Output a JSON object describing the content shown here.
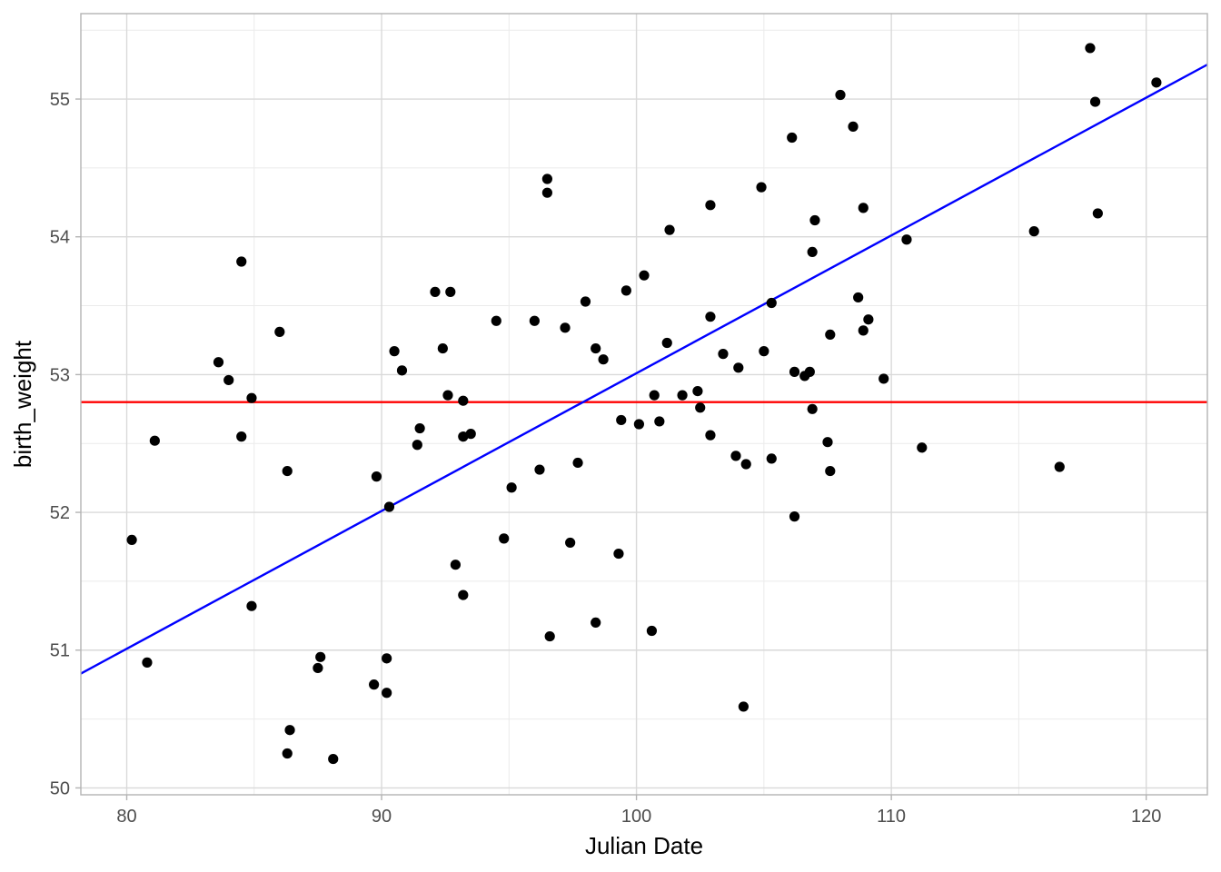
{
  "chart_data": {
    "type": "scatter",
    "title": "",
    "xlabel": "Julian Date",
    "ylabel": "birth_weight",
    "xlim": [
      78.2,
      122.4
    ],
    "ylim": [
      49.95,
      55.62
    ],
    "x_ticks": [
      80,
      90,
      100,
      110,
      120
    ],
    "y_ticks": [
      50,
      51,
      52,
      53,
      54,
      55
    ],
    "x_tick_labels": [
      "80",
      "90",
      "100",
      "110",
      "120"
    ],
    "y_tick_labels": [
      "50",
      "51",
      "52",
      "53",
      "54",
      "55"
    ],
    "grid": true,
    "legend": "none",
    "colors": {
      "points": "#000000",
      "mean_line": "#ff0000",
      "fit_line": "#0000ff",
      "grid_major": "#d9d9d9",
      "grid_minor": "#ebebeb",
      "panel_border": "#b3b3b3"
    },
    "points": [
      [
        80.2,
        51.8
      ],
      [
        80.8,
        50.91
      ],
      [
        81.1,
        52.52
      ],
      [
        83.6,
        53.09
      ],
      [
        84.0,
        52.96
      ],
      [
        84.5,
        53.82
      ],
      [
        84.5,
        52.55
      ],
      [
        84.9,
        52.83
      ],
      [
        84.9,
        51.32
      ],
      [
        86.0,
        53.31
      ],
      [
        86.3,
        52.3
      ],
      [
        86.3,
        50.25
      ],
      [
        86.4,
        50.42
      ],
      [
        87.5,
        50.87
      ],
      [
        87.6,
        50.95
      ],
      [
        88.1,
        50.21
      ],
      [
        89.7,
        50.75
      ],
      [
        89.8,
        52.26
      ],
      [
        90.2,
        50.94
      ],
      [
        90.2,
        50.69
      ],
      [
        90.3,
        52.04
      ],
      [
        90.5,
        53.17
      ],
      [
        90.8,
        53.03
      ],
      [
        91.4,
        52.49
      ],
      [
        91.5,
        52.61
      ],
      [
        92.1,
        53.6
      ],
      [
        92.4,
        53.19
      ],
      [
        92.6,
        52.85
      ],
      [
        92.7,
        53.6
      ],
      [
        92.9,
        51.62
      ],
      [
        93.2,
        52.55
      ],
      [
        93.2,
        52.81
      ],
      [
        93.2,
        51.4
      ],
      [
        93.5,
        52.57
      ],
      [
        94.5,
        53.39
      ],
      [
        94.8,
        51.81
      ],
      [
        95.1,
        52.18
      ],
      [
        96.0,
        53.39
      ],
      [
        96.2,
        52.31
      ],
      [
        96.5,
        54.42
      ],
      [
        96.5,
        54.32
      ],
      [
        96.6,
        51.1
      ],
      [
        97.2,
        53.34
      ],
      [
        97.4,
        51.78
      ],
      [
        97.7,
        52.36
      ],
      [
        98.0,
        53.53
      ],
      [
        98.4,
        53.19
      ],
      [
        98.4,
        51.2
      ],
      [
        98.7,
        53.11
      ],
      [
        99.3,
        51.7
      ],
      [
        99.4,
        52.67
      ],
      [
        99.6,
        53.61
      ],
      [
        100.1,
        52.64
      ],
      [
        100.3,
        53.72
      ],
      [
        100.6,
        51.14
      ],
      [
        100.7,
        52.85
      ],
      [
        100.9,
        52.66
      ],
      [
        101.2,
        53.23
      ],
      [
        101.3,
        54.05
      ],
      [
        101.8,
        52.85
      ],
      [
        102.4,
        52.88
      ],
      [
        102.5,
        52.76
      ],
      [
        102.9,
        54.23
      ],
      [
        102.9,
        53.42
      ],
      [
        102.9,
        52.56
      ],
      [
        103.4,
        53.15
      ],
      [
        103.9,
        52.41
      ],
      [
        104.0,
        53.05
      ],
      [
        104.2,
        50.59
      ],
      [
        104.3,
        52.35
      ],
      [
        104.9,
        54.36
      ],
      [
        105.0,
        53.17
      ],
      [
        105.3,
        53.52
      ],
      [
        105.3,
        52.39
      ],
      [
        106.1,
        54.72
      ],
      [
        106.2,
        53.02
      ],
      [
        106.2,
        51.97
      ],
      [
        106.6,
        52.99
      ],
      [
        106.8,
        53.02
      ],
      [
        106.9,
        53.89
      ],
      [
        106.9,
        52.75
      ],
      [
        107.0,
        54.12
      ],
      [
        107.5,
        52.51
      ],
      [
        107.6,
        53.29
      ],
      [
        107.6,
        52.3
      ],
      [
        108.0,
        55.03
      ],
      [
        108.5,
        54.8
      ],
      [
        108.7,
        53.56
      ],
      [
        108.9,
        54.21
      ],
      [
        108.9,
        53.32
      ],
      [
        109.1,
        53.4
      ],
      [
        109.7,
        52.97
      ],
      [
        110.6,
        53.98
      ],
      [
        111.2,
        52.47
      ],
      [
        115.6,
        54.04
      ],
      [
        116.6,
        52.33
      ],
      [
        117.8,
        55.37
      ],
      [
        118.0,
        54.98
      ],
      [
        118.1,
        54.17
      ],
      [
        120.4,
        55.12
      ]
    ],
    "lines": [
      {
        "kind": "horizontal",
        "y": 52.8,
        "color": "#ff0000"
      },
      {
        "kind": "segment",
        "x": [
          78.2,
          122.4
        ],
        "y": [
          50.83,
          55.25
        ],
        "color": "#0000ff"
      }
    ]
  }
}
